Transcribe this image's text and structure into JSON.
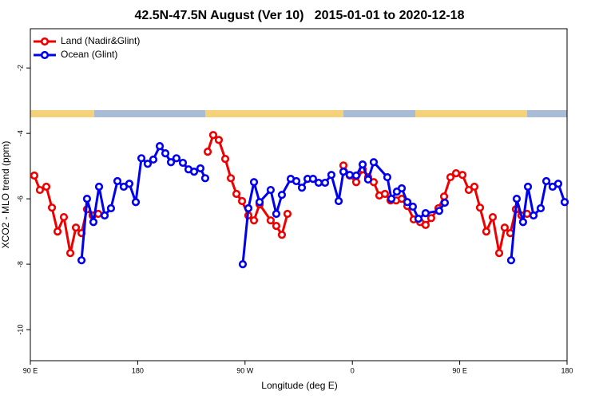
{
  "chart_data": {
    "type": "line",
    "title": "42.5N-47.5N August (Ver 10)   2015-01-01 to 2020-12-18",
    "x_label": "Longitude (deg E)",
    "y_label": "XCO2 - MLO trend (ppm)",
    "xlim": [
      90,
      540
    ],
    "ylim": [
      -10.95,
      -0.8
    ],
    "xticks": [
      {
        "value": 90,
        "label": "90 E"
      },
      180,
      {
        "value": 270,
        "label": "90 W"
      },
      {
        "value": 360,
        "label": "0"
      },
      {
        "value": 450,
        "label": "90 E"
      },
      {
        "value": 540,
        "label": "180"
      }
    ],
    "yticks": [
      -2,
      -4,
      -6,
      -8,
      -10
    ],
    "legend": "top-left",
    "series": [
      {
        "name": "Land (Nadir&Glint)",
        "color": "#ee0000",
        "x": [
          93.3,
          98.0,
          103.4,
          108.1,
          112.8,
          118.1,
          123.5,
          128.2,
          132.9,
          137.5,
          142.2,
          146.9,
          null,
          238.7,
          243.3,
          248.0,
          253.4,
          258.1,
          262.8,
          267.5,
          272.8,
          277.5,
          282.2,
          291.5,
          296.2,
          300.9,
          305.6,
          null,
          352.5,
          357.8,
          363.2,
          368.6,
          373.2,
          377.9,
          382.6,
          387.3,
          392.0,
          396.7,
          401.4,
          406.1,
          411.4,
          416.8,
          421.4,
          426.1,
          432.2,
          436.9,
          442.2,
          446.9,
          452.3,
          457.6,
          462.3,
          467.0,
          472.3,
          477.7,
          483.1,
          487.7,
          492.4,
          497.1,
          501.8,
          506.5
        ],
        "values": [
          -5.29,
          -5.73,
          -5.63,
          -6.27,
          -7.0,
          -6.56,
          -7.66,
          -6.88,
          -7.05,
          -6.32,
          -6.51,
          -6.46,
          null,
          -4.56,
          -4.05,
          -4.2,
          -4.78,
          -5.37,
          -5.85,
          -6.07,
          -6.51,
          -6.66,
          -6.17,
          -6.66,
          -6.83,
          -7.1,
          -6.46,
          null,
          -4.98,
          -5.29,
          -5.49,
          -5.1,
          -5.34,
          -5.49,
          -5.9,
          -5.85,
          -6.05,
          -6.05,
          -6.0,
          -6.22,
          -6.63,
          -6.71,
          -6.8,
          -6.59,
          -6.29,
          -5.93,
          -5.34,
          -5.22,
          -5.27,
          -5.73,
          -5.63,
          -6.27,
          -7.0,
          -6.56,
          -7.66,
          -6.88,
          -7.05,
          -6.32,
          -6.51,
          -6.46
        ]
      },
      {
        "name": "Ocean (Glint)",
        "color": "#0000ee",
        "x": [
          132.9,
          137.5,
          142.9,
          147.6,
          152.3,
          157.6,
          163.0,
          168.3,
          173.0,
          178.4,
          183.1,
          188.4,
          193.1,
          198.5,
          203.2,
          207.9,
          212.5,
          217.9,
          222.6,
          227.3,
          232.6,
          236.6,
          null,
          268.1,
          272.8,
          277.5,
          282.2,
          291.5,
          296.2,
          300.9,
          308.3,
          313.0,
          317.7,
          322.4,
          327.0,
          331.7,
          337.1,
          342.4,
          348.5,
          352.5,
          357.8,
          363.2,
          368.6,
          373.2,
          377.9,
          389.3,
          392.7,
          397.3,
          401.4,
          406.1,
          410.7,
          415.4,
          421.4,
          432.8,
          437.5,
          null,
          493.1,
          497.8,
          503.1,
          507.2,
          511.9,
          517.9,
          522.6,
          527.9,
          532.6,
          538.0
        ],
        "values": [
          -7.88,
          -6.0,
          -6.71,
          -5.63,
          -6.51,
          -6.29,
          -5.46,
          -5.63,
          -5.54,
          -6.1,
          -4.76,
          -4.93,
          -4.8,
          -4.39,
          -4.61,
          -4.88,
          -4.76,
          -4.9,
          -5.1,
          -5.17,
          -5.07,
          -5.37,
          null,
          -8.0,
          -6.29,
          -5.49,
          -6.1,
          -5.73,
          -6.46,
          -5.88,
          -5.39,
          -5.46,
          -5.66,
          -5.39,
          -5.39,
          -5.51,
          -5.51,
          -5.27,
          -6.07,
          -5.17,
          -5.27,
          -5.29,
          -4.95,
          -5.41,
          -4.88,
          -5.34,
          -6.0,
          -5.78,
          -5.68,
          -6.1,
          -6.24,
          -6.61,
          -6.44,
          -6.37,
          -6.12,
          null,
          -7.88,
          -6.0,
          -6.71,
          -5.63,
          -6.51,
          -6.29,
          -5.46,
          -5.63,
          -5.54,
          -6.1
        ]
      }
    ]
  }
}
